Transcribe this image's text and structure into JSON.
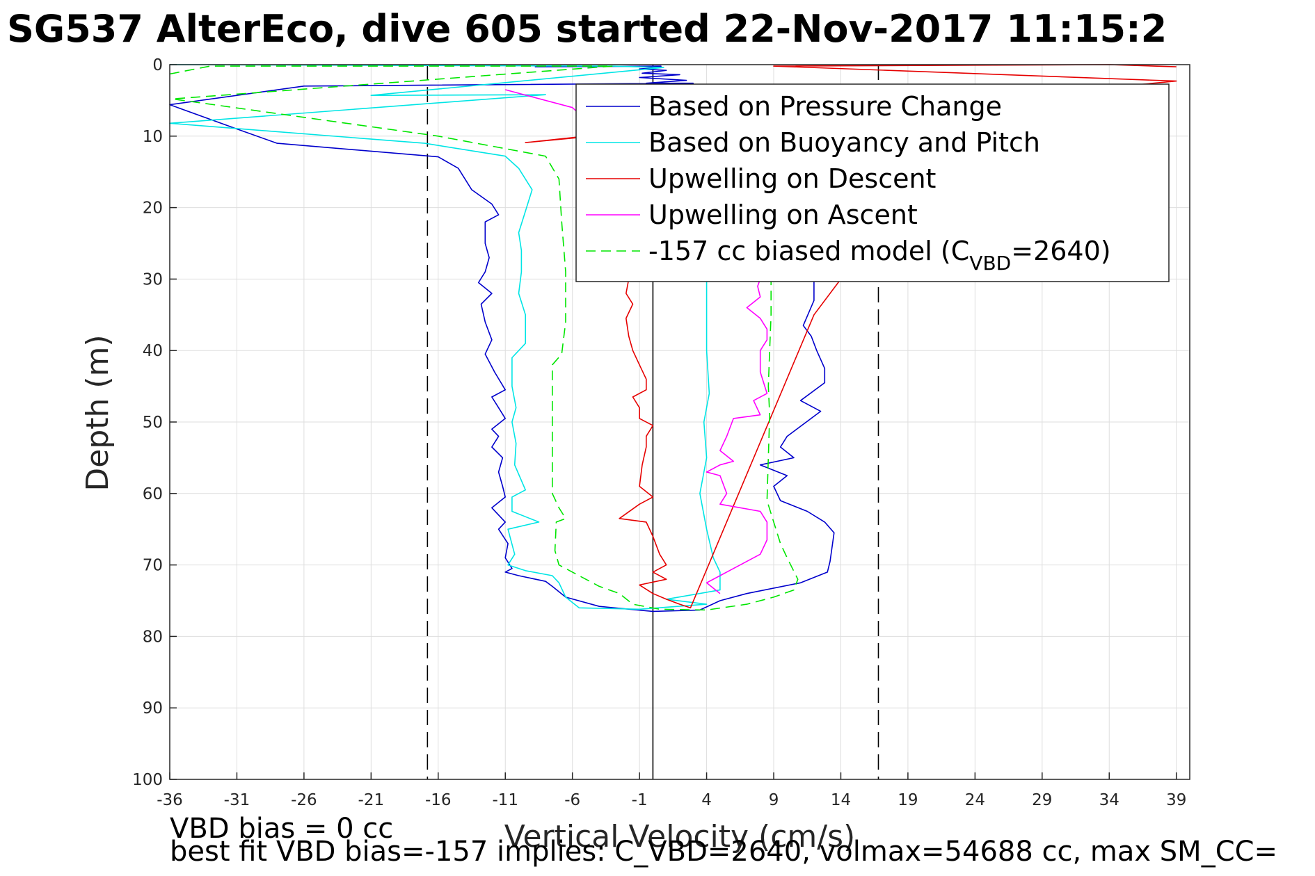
{
  "chart_data": {
    "type": "line",
    "title": "SG537 AlterEco, dive 605 started 22-Nov-2017 11:15:2",
    "xlabel": "Vertical Velocity (cm/s)",
    "ylabel": "Depth (m)",
    "xlim": [
      -36,
      40
    ],
    "ylim": [
      0,
      100
    ],
    "y_reversed": true,
    "grid": true,
    "xticks": [
      -36,
      -31,
      -26,
      -21,
      -16,
      -11,
      -6,
      -1,
      4,
      9,
      14,
      19,
      24,
      29,
      34,
      39
    ],
    "yticks": [
      0,
      10,
      20,
      30,
      40,
      50,
      60,
      70,
      80,
      90,
      100
    ],
    "legend_position": "top-right",
    "reference_lines": [
      {
        "x": -16.8,
        "style": "dashed",
        "color": "#000000"
      },
      {
        "x": 16.8,
        "style": "dashed",
        "color": "#000000"
      },
      {
        "x": 0,
        "style": "solid",
        "color": "#000000"
      }
    ],
    "series": [
      {
        "name": "Based on Pressure Change",
        "color": "#0000cc",
        "dash": false,
        "points": [
          [
            -8.8,
            0.3
          ],
          [
            0.6,
            0.2
          ],
          [
            0.6,
            0.4
          ],
          [
            -1,
            0.6
          ],
          [
            1,
            0.8
          ],
          [
            -0.8,
            1.2
          ],
          [
            2,
            1.4
          ],
          [
            -1,
            1.8
          ],
          [
            2.5,
            2.2
          ],
          [
            -0.5,
            2.6
          ],
          [
            3,
            2.6
          ],
          [
            -26,
            3
          ],
          [
            -36,
            5.6
          ],
          [
            -31,
            9
          ],
          [
            -28,
            11
          ],
          [
            -16,
            12.9
          ],
          [
            -14.5,
            14.5
          ],
          [
            -13.5,
            17.5
          ],
          [
            -12,
            19.5
          ],
          [
            -11.5,
            21
          ],
          [
            -12.5,
            22
          ],
          [
            -12.5,
            25
          ],
          [
            -12.2,
            27
          ],
          [
            -12.5,
            29
          ],
          [
            -13,
            30.5
          ],
          [
            -12,
            32
          ],
          [
            -12.8,
            33.5
          ],
          [
            -12.5,
            36
          ],
          [
            -12,
            38.5
          ],
          [
            -12.5,
            40.5
          ],
          [
            -11.8,
            43
          ],
          [
            -11,
            45.5
          ],
          [
            -12,
            46.5
          ],
          [
            -11.5,
            48
          ],
          [
            -11,
            49.5
          ],
          [
            -12,
            51
          ],
          [
            -11.5,
            52
          ],
          [
            -12,
            53.5
          ],
          [
            -11.2,
            55
          ],
          [
            -11.5,
            57
          ],
          [
            -11.2,
            59
          ],
          [
            -11,
            60.5
          ],
          [
            -12,
            62
          ],
          [
            -11,
            64
          ],
          [
            -11.5,
            65
          ],
          [
            -10.8,
            67
          ],
          [
            -11,
            69
          ],
          [
            -10.5,
            70.5
          ],
          [
            -11,
            71
          ],
          [
            -10,
            71.5
          ],
          [
            -8,
            72.3
          ],
          [
            -7.5,
            73
          ],
          [
            -6.5,
            74.5
          ],
          [
            -4,
            75.8
          ],
          [
            0,
            76.5
          ],
          [
            3.5,
            76.3
          ],
          [
            5,
            75
          ],
          [
            7,
            74
          ],
          [
            11,
            72.5
          ],
          [
            13,
            71
          ],
          [
            13.2,
            69.5
          ],
          [
            13.5,
            65.5
          ],
          [
            12.8,
            64
          ],
          [
            11.5,
            62.5
          ],
          [
            9.5,
            61
          ],
          [
            9,
            59
          ],
          [
            10,
            57.5
          ],
          [
            8,
            56
          ],
          [
            10.5,
            55
          ],
          [
            9.5,
            53.5
          ],
          [
            10,
            52
          ],
          [
            12.5,
            48.5
          ],
          [
            11,
            47
          ],
          [
            12.8,
            44.5
          ],
          [
            12.8,
            42.5
          ],
          [
            12.2,
            40
          ],
          [
            11.8,
            38
          ],
          [
            11.2,
            36.5
          ],
          [
            12,
            33
          ],
          [
            12,
            30
          ]
        ]
      },
      {
        "name": "Based on Buoyancy and Pitch",
        "color": "#00e5e5",
        "dash": false,
        "points": [
          [
            -36,
            0
          ],
          [
            -3,
            0.2
          ],
          [
            0.8,
            0.4
          ],
          [
            -21,
            4.3
          ],
          [
            -8,
            4.2
          ],
          [
            -36,
            8.2
          ],
          [
            -17,
            11
          ],
          [
            -11,
            12.8
          ],
          [
            -10,
            14.5
          ],
          [
            -9,
            17.5
          ],
          [
            -9.5,
            20.5
          ],
          [
            -10,
            23.5
          ],
          [
            -9.8,
            26
          ],
          [
            -9.8,
            29
          ],
          [
            -10,
            32
          ],
          [
            -9.5,
            35
          ],
          [
            -9.5,
            39
          ],
          [
            -10.5,
            41
          ],
          [
            -10.5,
            45
          ],
          [
            -10.2,
            48
          ],
          [
            -10.5,
            50
          ],
          [
            -10.2,
            53
          ],
          [
            -10.3,
            56
          ],
          [
            -9.5,
            59.5
          ],
          [
            -10.5,
            60.5
          ],
          [
            -10.5,
            62.5
          ],
          [
            -8.5,
            64
          ],
          [
            -10.8,
            65
          ],
          [
            -10.3,
            68.5
          ],
          [
            -10.8,
            70
          ],
          [
            -9.5,
            70.8
          ],
          [
            -7.5,
            71.5
          ],
          [
            -7,
            72.5
          ],
          [
            -6.5,
            74.5
          ],
          [
            -5.5,
            76
          ],
          [
            -1,
            76.2
          ],
          [
            4,
            75.5
          ],
          [
            1,
            74.8
          ],
          [
            5,
            73.5
          ],
          [
            5,
            71
          ],
          [
            4.5,
            69
          ],
          [
            4,
            65
          ],
          [
            3.5,
            60
          ],
          [
            4,
            55
          ],
          [
            3.8,
            50
          ],
          [
            4.2,
            46
          ],
          [
            4,
            40
          ],
          [
            4,
            35
          ],
          [
            4,
            30
          ]
        ]
      },
      {
        "name": "Upwelling on Descent",
        "color": "#e60000",
        "dash": false,
        "points": [
          [
            39,
            0.3
          ],
          [
            34,
            0
          ],
          [
            9,
            0.2
          ],
          [
            39,
            2.3
          ],
          [
            -9.5,
            10.9
          ],
          [
            -5,
            10
          ],
          [
            -5.5,
            11.5
          ],
          [
            -1.8,
            30
          ],
          [
            -2,
            32
          ],
          [
            -1.5,
            33.5
          ],
          [
            -2,
            35.5
          ],
          [
            -1.8,
            38
          ],
          [
            -1.5,
            40
          ],
          [
            -1,
            42
          ],
          [
            -0.5,
            44
          ],
          [
            -0.5,
            45.5
          ],
          [
            -1.5,
            46.5
          ],
          [
            -1,
            48
          ],
          [
            -1,
            49.5
          ],
          [
            0,
            50.5
          ],
          [
            -0.5,
            52
          ],
          [
            -0.5,
            53.5
          ],
          [
            -0.8,
            56
          ],
          [
            -1,
            59
          ],
          [
            0,
            60.5
          ],
          [
            -1,
            61.5
          ],
          [
            -2.5,
            63.5
          ],
          [
            -0.5,
            64
          ],
          [
            0,
            66
          ],
          [
            0.5,
            68.5
          ],
          [
            1,
            70
          ],
          [
            0,
            71
          ],
          [
            1,
            72
          ],
          [
            -1,
            72.8
          ],
          [
            0,
            74
          ],
          [
            1,
            74.8
          ],
          [
            2,
            75.5
          ],
          [
            2.8,
            76
          ],
          [
            12,
            35
          ],
          [
            14,
            30
          ]
        ]
      },
      {
        "name": "Upwelling on Ascent",
        "color": "#ff00ff",
        "dash": false,
        "points": [
          [
            -11,
            3.5
          ],
          [
            -6,
            6
          ],
          [
            8,
            30
          ],
          [
            7.8,
            31
          ],
          [
            8,
            32.5
          ],
          [
            7,
            34
          ],
          [
            8,
            35.5
          ],
          [
            8.5,
            37
          ],
          [
            8.5,
            38.5
          ],
          [
            8,
            40
          ],
          [
            8,
            43
          ],
          [
            8.5,
            46
          ],
          [
            7.5,
            47
          ],
          [
            8,
            49
          ],
          [
            6,
            49.5
          ],
          [
            5.5,
            52
          ],
          [
            5,
            54
          ],
          [
            6,
            55.5
          ],
          [
            5,
            56
          ],
          [
            4,
            57
          ],
          [
            5,
            57.5
          ],
          [
            5.5,
            60
          ],
          [
            5,
            61.5
          ],
          [
            8,
            62.5
          ],
          [
            8.5,
            64
          ],
          [
            8.5,
            66.5
          ],
          [
            8,
            68.5
          ],
          [
            6,
            70.5
          ],
          [
            4,
            72.5
          ],
          [
            5,
            74
          ]
        ]
      },
      {
        "name": "-157 cc biased model (C_VBD=2640)",
        "color": "#00e600",
        "dash": true,
        "points": [
          [
            -36,
            1.3
          ],
          [
            -33,
            0.2
          ],
          [
            -3,
            0.2
          ],
          [
            -35.8,
            4.8
          ],
          [
            -16,
            10
          ],
          [
            -8,
            12.8
          ],
          [
            -7,
            16
          ],
          [
            -6.8,
            22
          ],
          [
            -6.5,
            29
          ],
          [
            -6.5,
            36
          ],
          [
            -6.8,
            40.5
          ],
          [
            -7.5,
            42
          ],
          [
            -7.5,
            47
          ],
          [
            -7.5,
            52
          ],
          [
            -7.5,
            57
          ],
          [
            -7.5,
            60
          ],
          [
            -7,
            62
          ],
          [
            -6.5,
            63.5
          ],
          [
            -7.2,
            64
          ],
          [
            -7.3,
            68
          ],
          [
            -7,
            70
          ],
          [
            -5.5,
            71.5
          ],
          [
            -4,
            73
          ],
          [
            -2.5,
            74
          ],
          [
            -1.5,
            75.5
          ],
          [
            0.5,
            76.2
          ],
          [
            4,
            76.3
          ],
          [
            7,
            75.5
          ],
          [
            9,
            74.5
          ],
          [
            10.5,
            73.5
          ],
          [
            10.8,
            72
          ],
          [
            10,
            69
          ],
          [
            9.5,
            67
          ],
          [
            9,
            64
          ],
          [
            8.5,
            61
          ],
          [
            8.6,
            55
          ],
          [
            8.7,
            49
          ],
          [
            8.6,
            45
          ],
          [
            8.7,
            40
          ],
          [
            8.8,
            35
          ],
          [
            8.8,
            30
          ]
        ]
      }
    ],
    "legend": [
      {
        "label": "Based on Pressure Change",
        "color": "#0000cc",
        "dash": false
      },
      {
        "label": "Based on Buoyancy and Pitch",
        "color": "#00e5e5",
        "dash": false
      },
      {
        "label": "Upwelling on Descent",
        "color": "#e60000",
        "dash": false
      },
      {
        "label": "Upwelling on Ascent",
        "color": "#ff00ff",
        "dash": false
      },
      {
        "label_main": "-157 cc biased model (C",
        "label_sub": "VBD",
        "label_tail": "=2640)",
        "color": "#00e600",
        "dash": true
      }
    ],
    "annotations": [
      "VBD bias = 0 cc",
      "best fit VBD bias=-157 implies: C_VBD=2640, volmax=54688 cc, max SM_CC="
    ]
  }
}
